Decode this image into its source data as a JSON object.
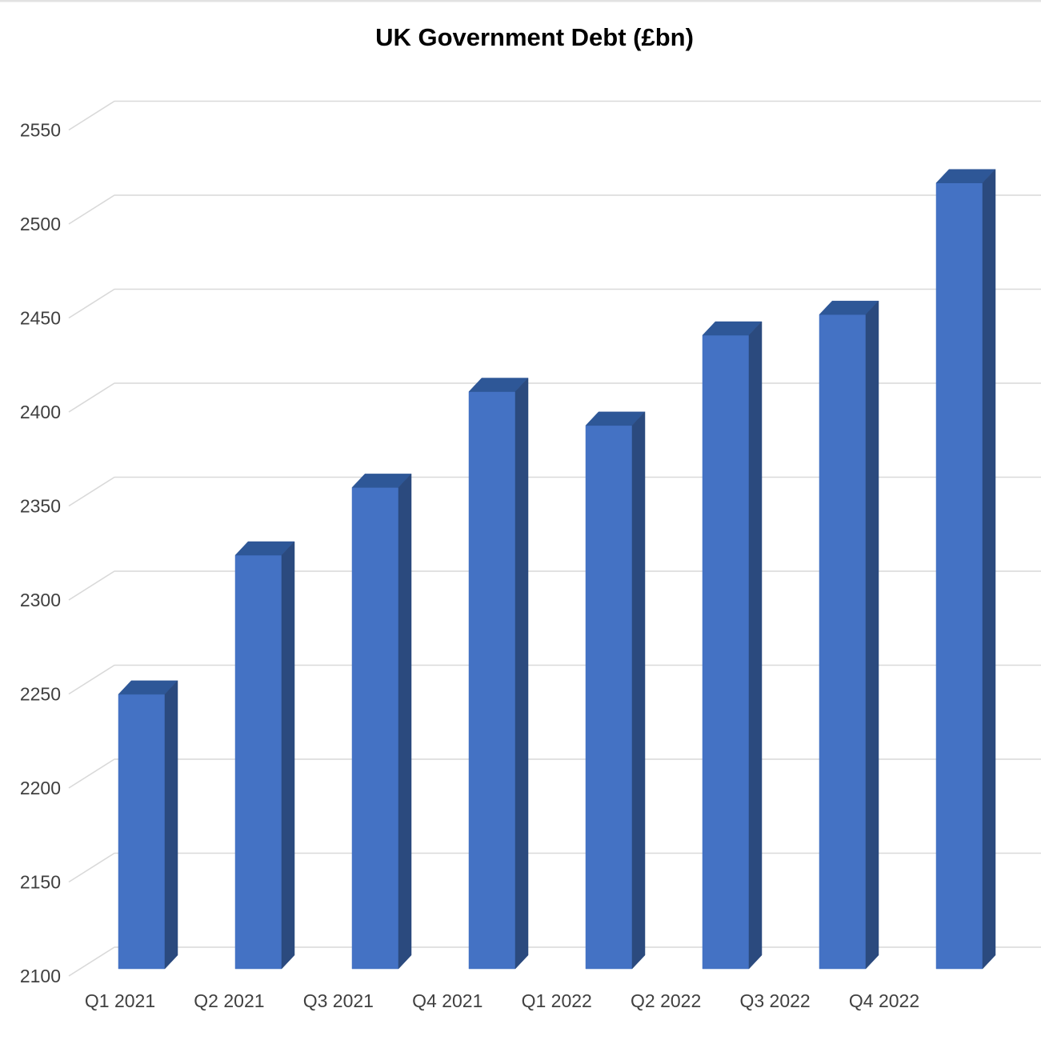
{
  "chart_data": {
    "type": "bar",
    "variant": "3d-column",
    "title": "UK Government Debt (£bn)",
    "categories": [
      "Q1 2021",
      "Q2 2021",
      "Q3 2021",
      "Q4 2021",
      "Q1 2022",
      "Q2 2022",
      "Q3 2022",
      "Q4 2022"
    ],
    "series": [
      {
        "name": "UK Government Debt",
        "values": [
          2246,
          2320,
          2356,
          2407,
          2389,
          2437,
          2448,
          2518
        ]
      }
    ],
    "values": [
      2246,
      2320,
      2356,
      2407,
      2389,
      2437,
      2448,
      2518
    ],
    "xlabel": "",
    "ylabel": "",
    "ylim": [
      2100,
      2550
    ],
    "ytick_step": 50,
    "ytick_labels": [
      "2100",
      "2150",
      "2200",
      "2250",
      "2300",
      "2350",
      "2400",
      "2450",
      "2500",
      "2550"
    ],
    "grid": true,
    "legend_position": "none",
    "colors": {
      "bar_front": "#4472C4",
      "bar_top": "#2E5797",
      "bar_side": "#2B4A7E",
      "gridline": "#D9D9D9",
      "axis_label": "#404040",
      "title": "#000000",
      "background": "#FFFFFF",
      "top_border": "#E2E2E2"
    }
  }
}
